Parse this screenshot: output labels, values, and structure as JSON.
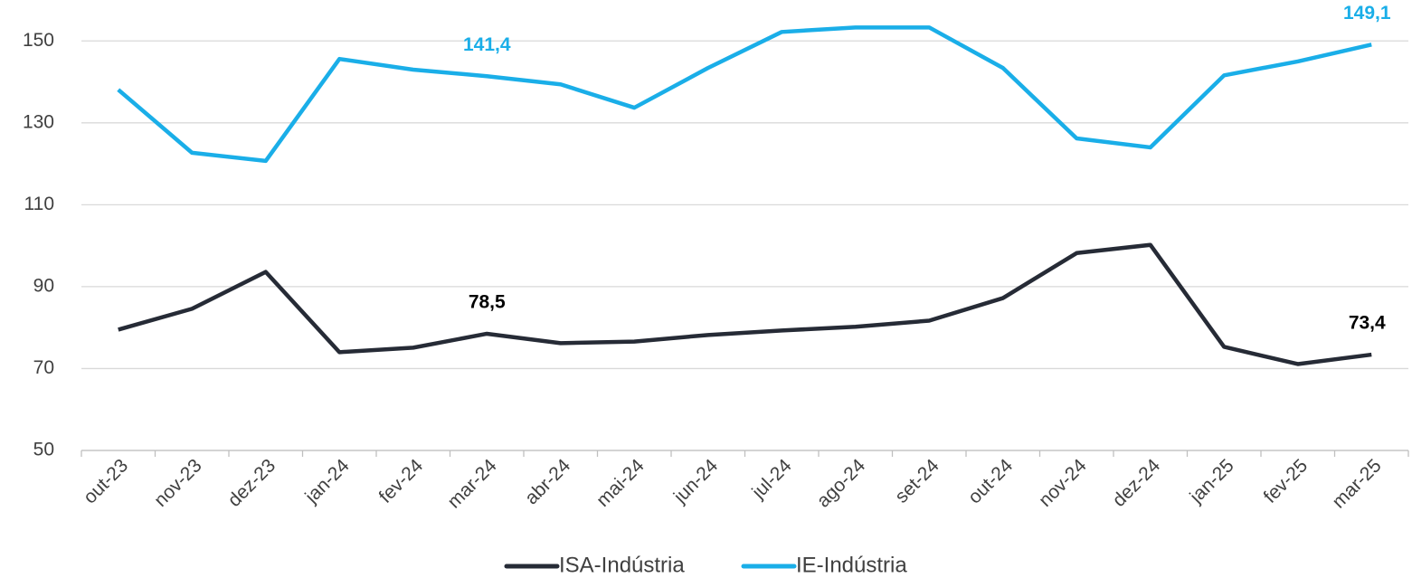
{
  "chart_data": {
    "type": "line",
    "categories": [
      "out-23",
      "nov-23",
      "dez-23",
      "jan-24",
      "fev-24",
      "mar-24",
      "abr-24",
      "mai-24",
      "jun-24",
      "jul-24",
      "ago-24",
      "set-24",
      "out-24",
      "nov-24",
      "dez-24",
      "jan-25",
      "fev-25",
      "mar-25"
    ],
    "series": [
      {
        "name": "ISA-Indústria",
        "color": "#262b36",
        "values": [
          79.5,
          84.6,
          93.6,
          74.0,
          75.1,
          78.5,
          76.2,
          76.6,
          78.2,
          79.3,
          80.2,
          81.7,
          87.2,
          98.2,
          100.2,
          75.3,
          71.1,
          73.4
        ],
        "value_labels": [
          null,
          null,
          null,
          null,
          null,
          "78,5",
          null,
          null,
          null,
          null,
          null,
          null,
          null,
          null,
          null,
          null,
          null,
          "73,4"
        ]
      },
      {
        "name": "IE-Indústria",
        "color": "#1aaee8",
        "values": [
          138.1,
          122.7,
          120.7,
          145.6,
          143.0,
          141.4,
          139.4,
          133.7,
          143.4,
          152.2,
          153.3,
          153.3,
          143.4,
          126.2,
          124.0,
          141.6,
          145.0,
          149.1
        ],
        "value_labels": [
          null,
          null,
          null,
          null,
          null,
          "141,4",
          null,
          null,
          null,
          null,
          null,
          null,
          null,
          null,
          null,
          null,
          null,
          "149,1"
        ]
      }
    ],
    "ylim": [
      50,
      160
    ],
    "yticks": [
      50,
      70,
      90,
      110,
      130,
      150
    ],
    "grid": true,
    "legend": "bottom"
  }
}
